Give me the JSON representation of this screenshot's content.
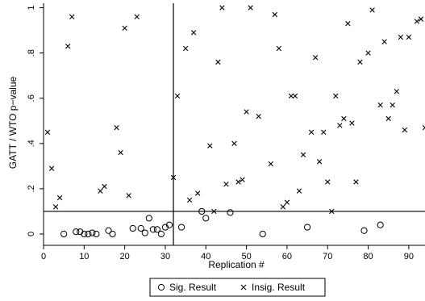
{
  "chart_data": {
    "type": "scatter",
    "xlabel": "Replication #",
    "ylabel": "GATT / WTO p−value",
    "xlim": [
      0,
      94
    ],
    "ylim": [
      -0.05,
      1.02
    ],
    "x_ticks": [
      0,
      10,
      20,
      30,
      40,
      50,
      60,
      70,
      80,
      90
    ],
    "y_ticks": [
      0,
      0.2,
      0.4,
      0.6,
      0.8,
      1
    ],
    "y_tick_labels": [
      "0",
      ".2",
      ".4",
      ".6",
      ".8",
      "1"
    ],
    "reference_lines": {
      "vertical_x": 32,
      "horizontal_y": 0.1
    },
    "grid": false,
    "legend_position": "bottom",
    "series": [
      {
        "name": "Sig. Result",
        "marker": "circle",
        "points": [
          [
            5,
            0.0
          ],
          [
            8,
            0.01
          ],
          [
            9,
            0.01
          ],
          [
            10,
            0.0
          ],
          [
            11,
            0.0
          ],
          [
            12,
            0.005
          ],
          [
            13,
            0.0
          ],
          [
            16,
            0.015
          ],
          [
            17,
            0.0
          ],
          [
            22,
            0.025
          ],
          [
            24,
            0.025
          ],
          [
            25,
            0.005
          ],
          [
            26,
            0.07
          ],
          [
            27,
            0.02
          ],
          [
            28,
            0.02
          ],
          [
            29,
            0.0
          ],
          [
            30,
            0.03
          ],
          [
            31,
            0.04
          ],
          [
            34,
            0.03
          ],
          [
            39,
            0.1
          ],
          [
            40,
            0.07
          ],
          [
            46,
            0.095
          ],
          [
            54,
            0.0
          ],
          [
            65,
            0.03
          ],
          [
            79,
            0.015
          ],
          [
            83,
            0.04
          ]
        ]
      },
      {
        "name": "Insig. Result",
        "marker": "x",
        "points": [
          [
            1,
            0.45
          ],
          [
            2,
            0.29
          ],
          [
            3,
            0.12
          ],
          [
            4,
            0.16
          ],
          [
            6,
            0.83
          ],
          [
            7,
            0.96
          ],
          [
            14,
            0.19
          ],
          [
            15,
            0.21
          ],
          [
            18,
            0.47
          ],
          [
            19,
            0.36
          ],
          [
            20,
            0.91
          ],
          [
            21,
            0.17
          ],
          [
            23,
            0.96
          ],
          [
            32,
            0.25
          ],
          [
            33,
            0.61
          ],
          [
            35,
            0.82
          ],
          [
            36,
            0.15
          ],
          [
            37,
            0.89
          ],
          [
            38,
            0.18
          ],
          [
            41,
            0.39
          ],
          [
            42,
            0.1
          ],
          [
            43,
            0.76
          ],
          [
            44,
            1.0
          ],
          [
            45,
            0.22
          ],
          [
            47,
            0.4
          ],
          [
            48,
            0.23
          ],
          [
            49,
            0.24
          ],
          [
            50,
            0.54
          ],
          [
            51,
            1.0
          ],
          [
            53,
            0.52
          ],
          [
            56,
            0.31
          ],
          [
            57,
            0.97
          ],
          [
            58,
            0.82
          ],
          [
            59,
            0.12
          ],
          [
            60,
            0.14
          ],
          [
            61,
            0.61
          ],
          [
            62,
            0.61
          ],
          [
            63,
            0.19
          ],
          [
            64,
            0.35
          ],
          [
            66,
            0.45
          ],
          [
            67,
            0.78
          ],
          [
            68,
            0.32
          ],
          [
            69,
            0.45
          ],
          [
            70,
            0.23
          ],
          [
            71,
            0.1
          ],
          [
            72,
            0.61
          ],
          [
            73,
            0.48
          ],
          [
            74,
            0.51
          ],
          [
            75,
            0.93
          ],
          [
            76,
            0.49
          ],
          [
            77,
            0.23
          ],
          [
            78,
            0.76
          ],
          [
            80,
            0.8
          ],
          [
            81,
            0.99
          ],
          [
            83,
            0.57
          ],
          [
            84,
            0.85
          ],
          [
            85,
            0.51
          ],
          [
            86,
            0.57
          ],
          [
            87,
            0.63
          ],
          [
            88,
            0.87
          ],
          [
            89,
            0.46
          ],
          [
            90,
            0.87
          ],
          [
            92,
            0.94
          ],
          [
            93,
            0.95
          ],
          [
            94,
            0.47
          ]
        ]
      }
    ]
  }
}
